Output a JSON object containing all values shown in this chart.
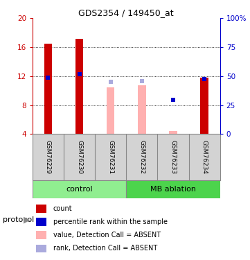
{
  "title": "GDS2354 / 149450_at",
  "samples": [
    "GSM76229",
    "GSM76230",
    "GSM76231",
    "GSM76232",
    "GSM76233",
    "GSM76234"
  ],
  "ylim_left": [
    4,
    20
  ],
  "ylim_right": [
    0,
    100
  ],
  "yticks_left": [
    4,
    8,
    12,
    16,
    20
  ],
  "yticks_right": [
    0,
    25,
    50,
    75,
    100
  ],
  "ytick_labels_left": [
    "4",
    "8",
    "12",
    "16",
    "20"
  ],
  "ytick_labels_right": [
    "0",
    "25",
    "50",
    "75",
    "100%"
  ],
  "red_bars": {
    "GSM76229": [
      4,
      16.5
    ],
    "GSM76230": [
      4,
      17.2
    ],
    "GSM76231": null,
    "GSM76232": null,
    "GSM76233": null,
    "GSM76234": [
      4,
      11.8
    ]
  },
  "blue_squares": {
    "GSM76229": 11.8,
    "GSM76230": 12.3,
    "GSM76231": null,
    "GSM76232": null,
    "GSM76233": 8.7,
    "GSM76234": 11.6
  },
  "pink_bars": {
    "GSM76229": null,
    "GSM76230": null,
    "GSM76231": [
      4,
      10.5
    ],
    "GSM76232": [
      4,
      10.7
    ],
    "GSM76233": [
      4,
      4.4
    ],
    "GSM76234": null
  },
  "light_blue_squares": {
    "GSM76229": null,
    "GSM76230": null,
    "GSM76231": 11.2,
    "GSM76232": 11.3,
    "GSM76233": null,
    "GSM76234": null
  },
  "red_color": "#CC0000",
  "blue_color": "#0000CC",
  "pink_color": "#FFB0B0",
  "light_blue_color": "#AAAADD",
  "bar_width": 0.25,
  "dotted_lines": [
    8,
    12,
    16
  ],
  "control_color": "#90EE90",
  "mb_color": "#4CD44C",
  "protocol_label": "protocol",
  "group_label_control": "control",
  "group_label_mb": "MB ablation",
  "legend_items": [
    {
      "color": "#CC0000",
      "label": "count"
    },
    {
      "color": "#0000CC",
      "label": "percentile rank within the sample"
    },
    {
      "color": "#FFB0B0",
      "label": "value, Detection Call = ABSENT"
    },
    {
      "color": "#AAAADD",
      "label": "rank, Detection Call = ABSENT"
    }
  ],
  "sample_bg": "#D3D3D3",
  "cell_border": "#888888"
}
